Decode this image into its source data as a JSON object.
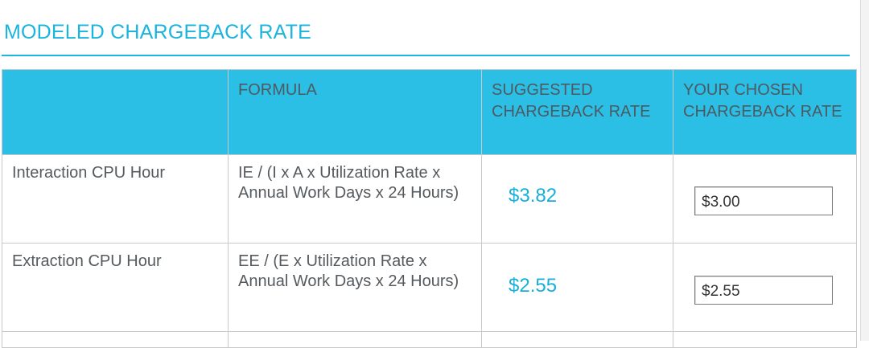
{
  "section": {
    "title": "MODELED CHARGEBACK RATE"
  },
  "table": {
    "headers": {
      "label": "",
      "formula": "FORMULA",
      "suggested": "SUGGESTED CHARGEBACK RATE",
      "chosen": "YOUR CHOSEN CHARGEBACK RATE"
    },
    "rows": [
      {
        "label": "Interaction CPU Hour",
        "formula": "IE / (I x A x Utilization Rate x Annual Work Days x 24 Hours)",
        "suggested": "$3.82",
        "chosen": "$3.00"
      },
      {
        "label": "Extraction CPU Hour",
        "formula": "EE / (E x Utilization Rate x Annual Work Days x 24 Hours)",
        "suggested": "$2.55",
        "chosen": "$2.55"
      }
    ]
  },
  "colors": {
    "accent": "#1ab4dc",
    "header_bg": "#2bbfe5"
  }
}
